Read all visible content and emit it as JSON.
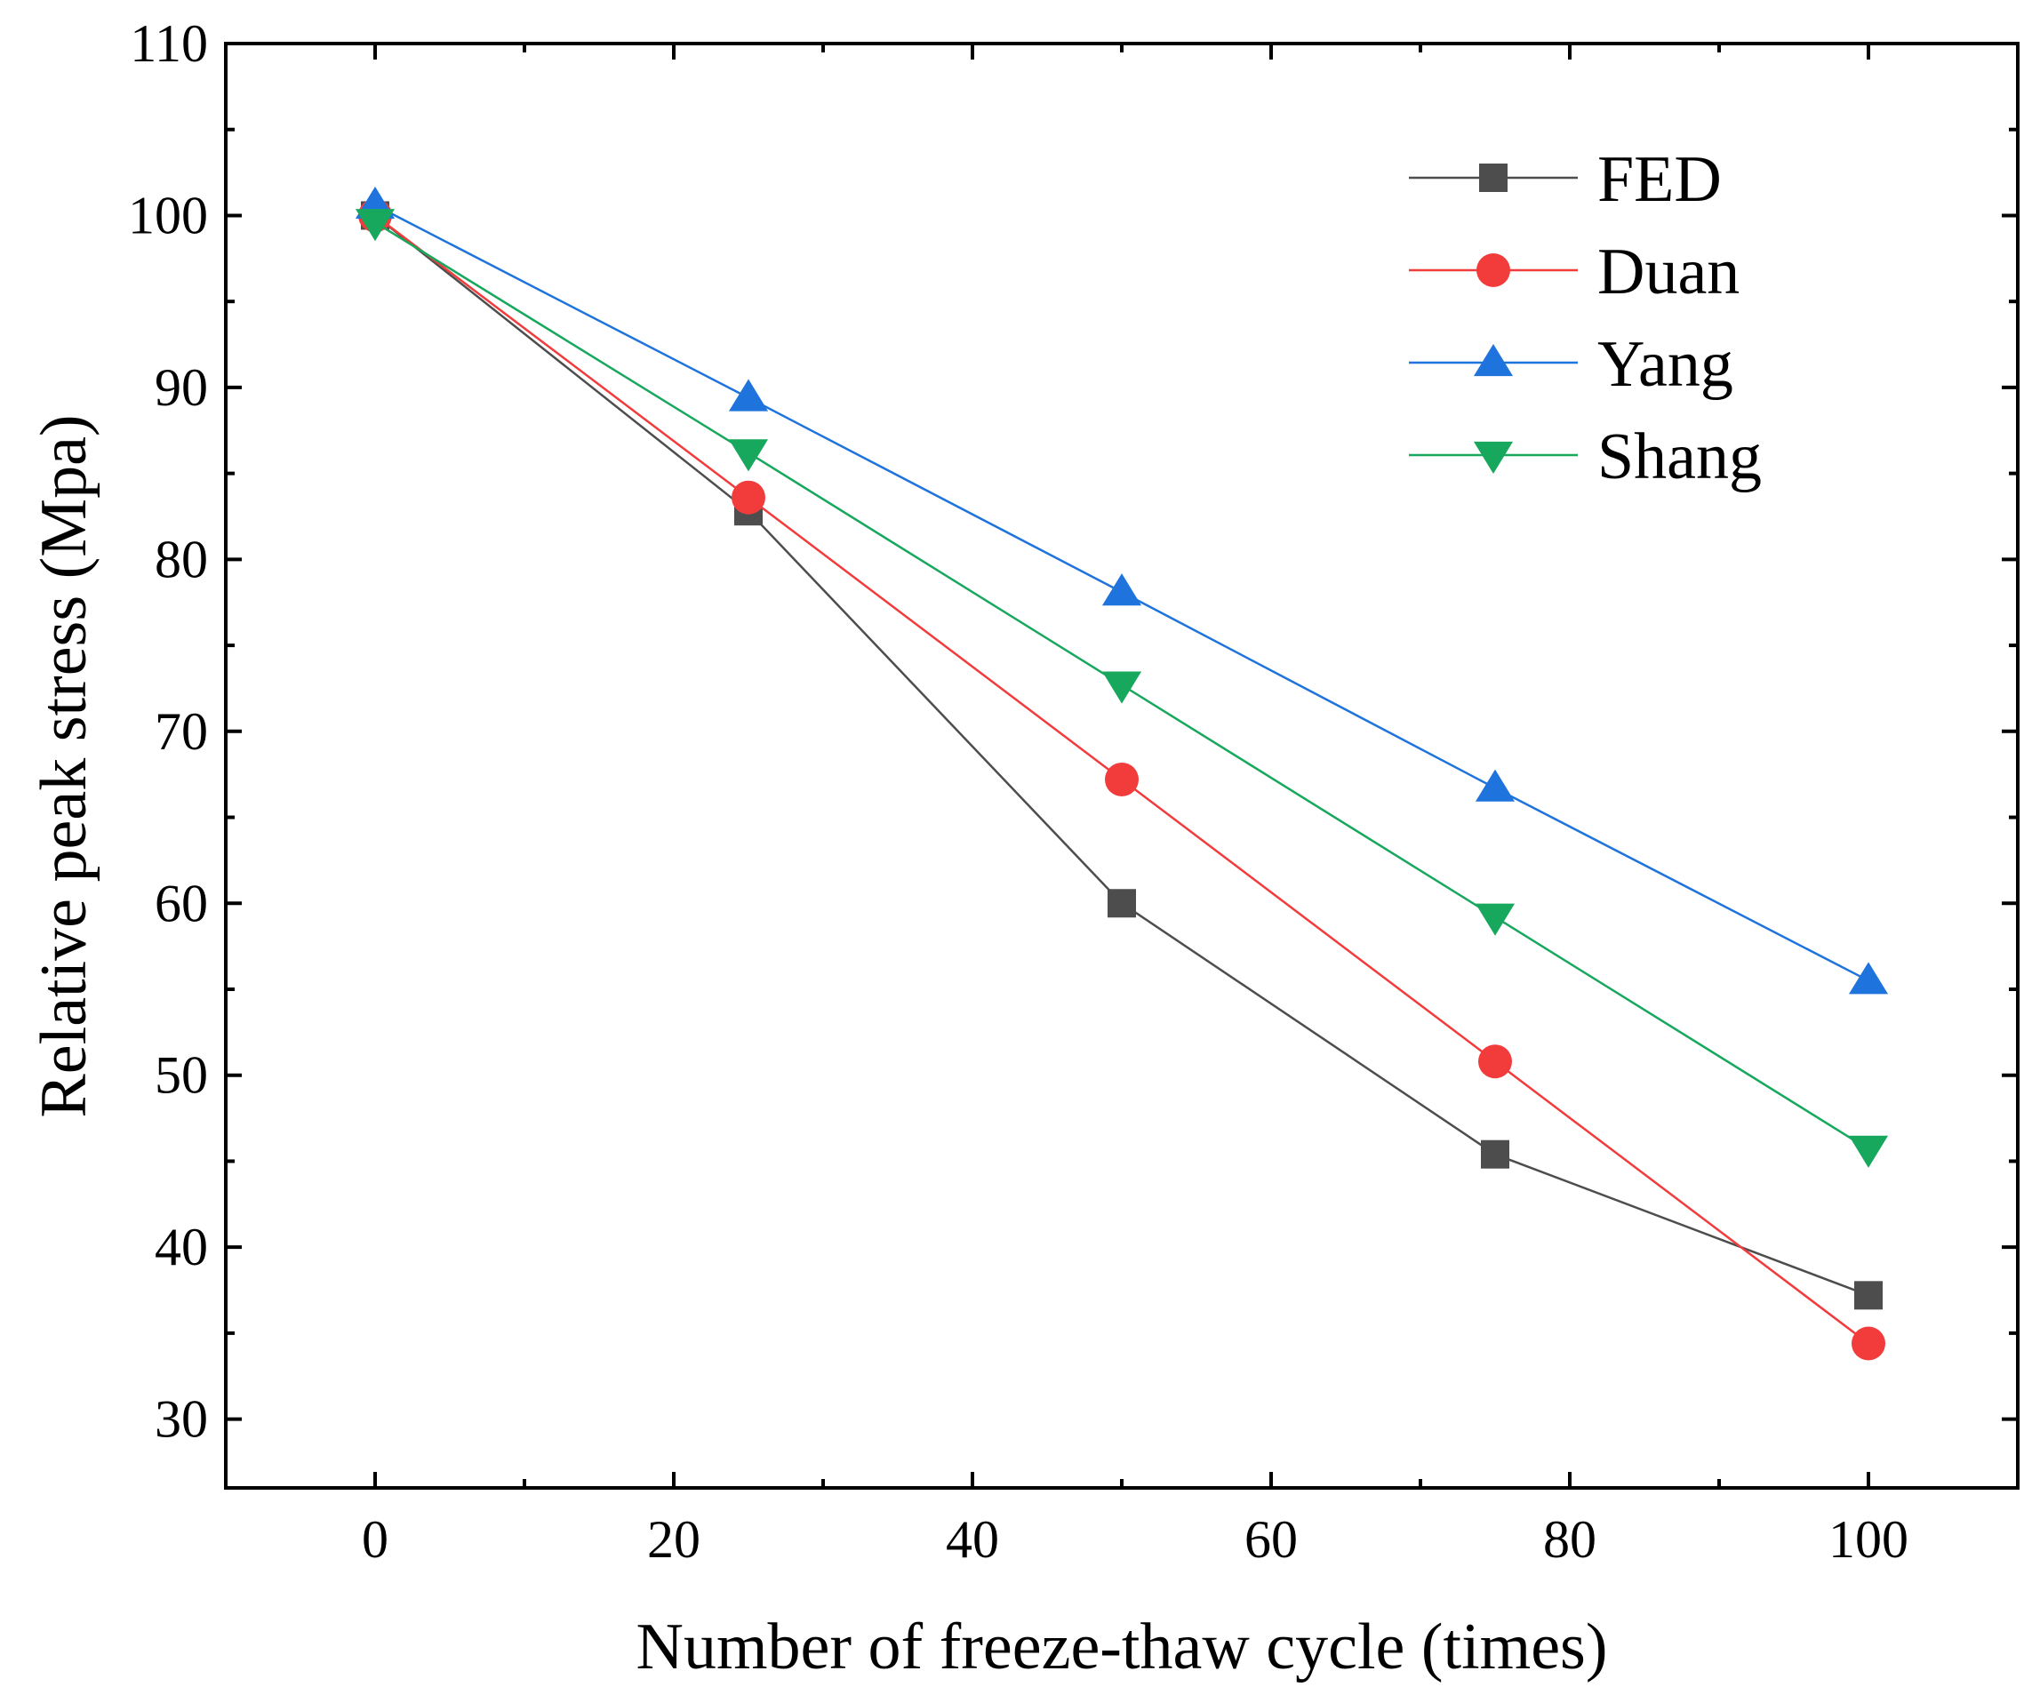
{
  "chart_data": {
    "type": "line",
    "title": "",
    "xlabel": "Number of freeze-thaw cycle (times)",
    "ylabel": "Relative peak stress (Mpa)",
    "xlim": [
      -10,
      110
    ],
    "ylim": [
      26,
      110
    ],
    "xticks": [
      0,
      20,
      40,
      60,
      80,
      100
    ],
    "yticks": [
      30,
      40,
      50,
      60,
      70,
      80,
      90,
      100,
      110
    ],
    "x": [
      0,
      25,
      50,
      75,
      100
    ],
    "grid": false,
    "legend_position": "top-right",
    "series": [
      {
        "name": "FED",
        "marker": "square",
        "color": "#4d4d4d",
        "values": [
          100,
          82.8,
          60.0,
          45.4,
          37.2
        ]
      },
      {
        "name": "Duan",
        "marker": "circle",
        "color": "#f23c3c",
        "values": [
          100,
          83.6,
          67.2,
          50.8,
          34.4
        ]
      },
      {
        "name": "Yang",
        "marker": "triangle-up",
        "color": "#1e74dc",
        "values": [
          100.6,
          89.4,
          78.1,
          66.7,
          55.5
        ]
      },
      {
        "name": "Shang",
        "marker": "triangle-down",
        "color": "#17a85e",
        "values": [
          99.6,
          86.2,
          72.7,
          59.2,
          45.7
        ]
      }
    ]
  }
}
